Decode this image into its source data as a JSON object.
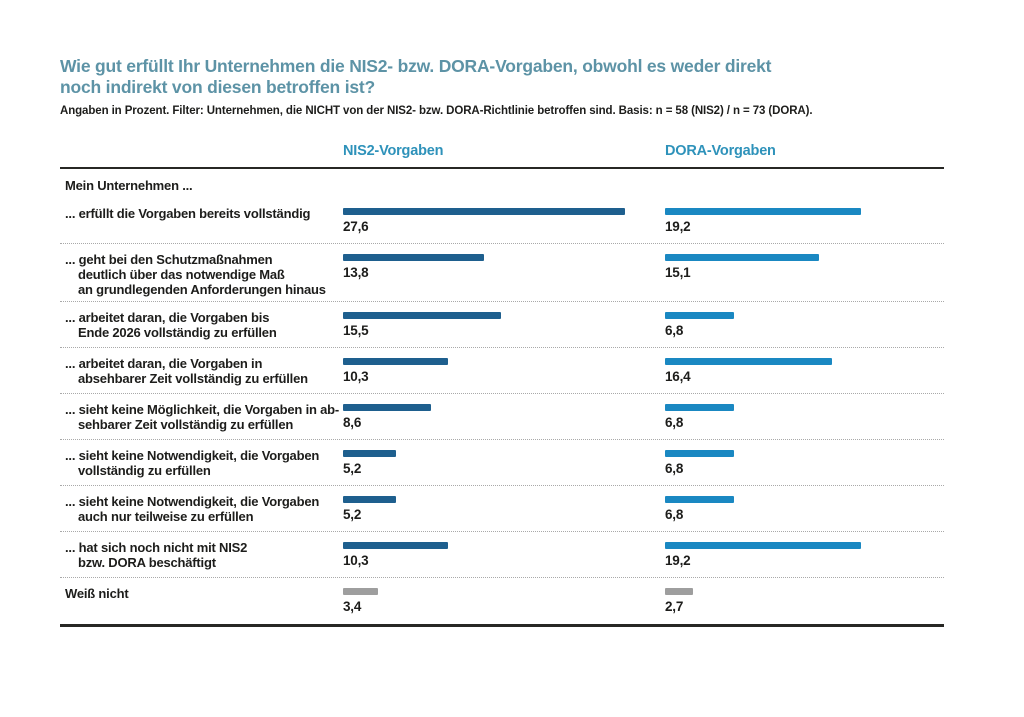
{
  "title": "Wie gut erfüllt Ihr Unternehmen die NIS2- bzw. DORA-Vorgaben, obwohl es weder direkt\nnoch indirekt von diesen betroffen ist?",
  "subtitle": "Angaben in Prozent. Filter: Unternehmen, die NICHT von der NIS2- bzw. DORA-Richtlinie betroffen sind. Basis: n = 58 (NIS2) / n = 73 (DORA).",
  "columns": {
    "nis2": "NIS2-Vorgaben",
    "dora": "DORA-Vorgaben"
  },
  "group_label": "Mein Unternehmen ...",
  "colors": {
    "title": "#5d93a6",
    "column_header": "#2e92ba",
    "nis2_bar": "#1e5f8e",
    "dora_bar": "#1a88c2",
    "neutral_bar": "#9e9e9e",
    "text": "#1d1d1b"
  },
  "chart_data": {
    "type": "bar",
    "orientation": "horizontal",
    "unit": "percent",
    "title": "Wie gut erfüllt Ihr Unternehmen die NIS2- bzw. DORA-Vorgaben, obwohl es weder direkt noch indirekt von diesen betroffen ist?",
    "subtitle": "Angaben in Prozent. Filter: Unternehmen, die NICHT von der NIS2- bzw. DORA-Richtlinie betroffen sind. Basis: n = 58 (NIS2) / n = 73 (DORA).",
    "group_label": "Mein Unternehmen ...",
    "categories": [
      "... erfüllt die Vorgaben bereits vollständig",
      "... geht bei den Schutzmaßnahmen\ndeutlich über das notwendige Maß\nan grundlegenden Anforderungen hinaus",
      "... arbeitet daran, die Vorgaben bis\nEnde 2026 vollständig zu erfüllen",
      "... arbeitet daran, die Vorgaben in\nabsehbarer Zeit vollständig zu erfüllen",
      "... sieht keine Möglichkeit, die Vorgaben in ab-\nsehbarer Zeit vollständig zu erfüllen",
      "... sieht keine Notwendigkeit, die Vorgaben\nvollständig zu erfüllen",
      "... sieht keine Notwendigkeit, die Vorgaben\nauch nur teilweise zu erfüllen",
      "... hat sich noch nicht mit NIS2\nbzw. DORA beschäftigt",
      "Weiß nicht"
    ],
    "series": [
      {
        "name": "NIS2-Vorgaben",
        "values": [
          27.6,
          13.8,
          15.5,
          10.3,
          8.6,
          5.2,
          5.2,
          10.3,
          3.4
        ]
      },
      {
        "name": "DORA-Vorgaben",
        "values": [
          19.2,
          15.1,
          6.8,
          16.4,
          6.8,
          6.8,
          6.8,
          19.2,
          2.7
        ]
      }
    ],
    "neutral_rows": [
      8
    ],
    "value_labels": {
      "NIS2-Vorgaben": [
        "27,6",
        "13,8",
        "15,5",
        "10,3",
        "8,6",
        "5,2",
        "5,2",
        "10,3",
        "3,4"
      ],
      "DORA-Vorgaben": [
        "19,2",
        "15,1",
        "6,8",
        "16,4",
        "6,8",
        "6,8",
        "6,8",
        "19,2",
        "2,7"
      ]
    },
    "axis": {
      "xlim": [
        0,
        30
      ],
      "grid": false,
      "legend_position": "column-headers"
    }
  }
}
